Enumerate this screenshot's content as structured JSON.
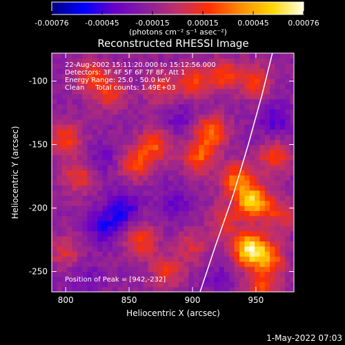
{
  "chart_data": {
    "type": "heatmap",
    "title": "Reconstructed RHESSI Image",
    "xlabel": "Heliocentric X (arcsec)",
    "ylabel": "Heliocentric Y (arcsec)",
    "xlim": [
      789,
      980
    ],
    "ylim": [
      -266,
      -78
    ],
    "x_ticks": [
      800,
      850,
      900,
      950
    ],
    "y_ticks": [
      -100,
      -150,
      -200,
      -250
    ],
    "colorbar": {
      "ticks": [
        "-0.00076",
        "-0.00045",
        "-0.00015",
        "0.00015",
        "0.00045",
        "0.00076"
      ],
      "range": [
        -0.00076,
        0.00076
      ],
      "unit_label": "(photons cm⁻² s⁻¹ asec⁻²)",
      "colormap": [
        "#000080",
        "#0000ff",
        "#6a00c8",
        "#8a1f9e",
        "#c0306a",
        "#ff3000",
        "#ff8c00",
        "#ffd700",
        "#ffffe6"
      ]
    },
    "annotations": [
      "22-Aug-2002 15:11:20.000 to 15:12:56.000",
      "Detectors: 3F 4F 5F 6F 7F 8F, Att 1",
      "Energy Range: 25.0 - 50.0 keV",
      "Clean     Total counts: 1.49E+03",
      "Position of Peak = [942,-232]"
    ],
    "limb_points": [
      [
        906,
        -266
      ],
      [
        918,
        -230
      ],
      [
        932,
        -190
      ],
      [
        944,
        -150
      ],
      [
        955,
        -110
      ],
      [
        963,
        -78
      ]
    ],
    "peak": [
      942,
      -232
    ],
    "hotspots": [
      {
        "x": 945,
        "y": -232,
        "v": 0.00076
      },
      {
        "x": 948,
        "y": -195,
        "v": 0.00068
      },
      {
        "x": 935,
        "y": -178,
        "v": 0.00045
      },
      {
        "x": 960,
        "y": -240,
        "v": 0.0004
      },
      {
        "x": 915,
        "y": -140,
        "v": 0.00042
      },
      {
        "x": 905,
        "y": -160,
        "v": 0.00036
      },
      {
        "x": 870,
        "y": -150,
        "v": 0.00034
      },
      {
        "x": 855,
        "y": -165,
        "v": 0.0003
      },
      {
        "x": 820,
        "y": -95,
        "v": 0.00028
      },
      {
        "x": 835,
        "y": -110,
        "v": 0.00026
      },
      {
        "x": 875,
        "y": -105,
        "v": 0.00022
      },
      {
        "x": 900,
        "y": -100,
        "v": 0.0003
      },
      {
        "x": 925,
        "y": -95,
        "v": 0.00032
      },
      {
        "x": 950,
        "y": -100,
        "v": 0.00028
      },
      {
        "x": 800,
        "y": -145,
        "v": 0.0003
      },
      {
        "x": 810,
        "y": -175,
        "v": 0.00026
      },
      {
        "x": 860,
        "y": -225,
        "v": 0.0003
      },
      {
        "x": 880,
        "y": -250,
        "v": 0.00026
      },
      {
        "x": 925,
        "y": -210,
        "v": 0.00022
      },
      {
        "x": 965,
        "y": -160,
        "v": 0.0003
      },
      {
        "x": 970,
        "y": -205,
        "v": 0.00024
      },
      {
        "x": 800,
        "y": -235,
        "v": 0.0002
      },
      {
        "x": 900,
        "y": -230,
        "v": 0.00018
      },
      {
        "x": 955,
        "y": -262,
        "v": 0.0003
      },
      {
        "x": 845,
        "y": -200,
        "v": -0.0004
      },
      {
        "x": 830,
        "y": -215,
        "v": -0.00035
      },
      {
        "x": 885,
        "y": -195,
        "v": -0.00025
      },
      {
        "x": 830,
        "y": -160,
        "v": -0.0002
      },
      {
        "x": 890,
        "y": -130,
        "v": -0.00022
      },
      {
        "x": 965,
        "y": -130,
        "v": -0.0003
      },
      {
        "x": 920,
        "y": -255,
        "v": -0.00018
      },
      {
        "x": 815,
        "y": -255,
        "v": -0.0002
      }
    ]
  },
  "footer": {
    "timestamp": "1-May-2022 07:03"
  }
}
